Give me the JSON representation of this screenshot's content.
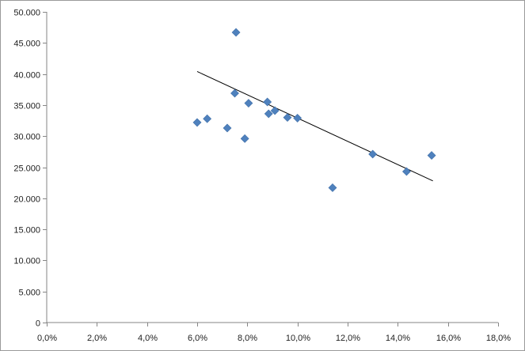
{
  "chart_data": {
    "type": "scatter",
    "title": "",
    "xlabel": "",
    "ylabel": "",
    "xlim": [
      0,
      18
    ],
    "ylim": [
      0,
      50000
    ],
    "x_ticks": [
      0,
      2,
      4,
      6,
      8,
      10,
      12,
      14,
      16,
      18
    ],
    "x_tick_labels": [
      "0,0%",
      "2,0%",
      "4,0%",
      "6,0%",
      "8,0%",
      "10,0%",
      "12,0%",
      "14,0%",
      "16,0%",
      "18,0%"
    ],
    "y_ticks": [
      0,
      5000,
      10000,
      15000,
      20000,
      25000,
      30000,
      35000,
      40000,
      45000,
      50000
    ],
    "y_tick_labels": [
      "0",
      "5.000",
      "10.000",
      "15.000",
      "20.000",
      "25.000",
      "30.000",
      "35.000",
      "40.000",
      "45.000",
      "50.000"
    ],
    "grid": false,
    "legend": "none",
    "marker_color": "#4f81bd",
    "trendline_color": "#000000",
    "series": [
      {
        "x": [
          6.0,
          6.4,
          7.2,
          7.5,
          7.55,
          7.9,
          8.05,
          8.8,
          8.85,
          9.1,
          9.6,
          10.0,
          11.4,
          13.0,
          14.35,
          15.35
        ],
        "y": [
          32200,
          32800,
          31300,
          36900,
          46700,
          29600,
          35300,
          35500,
          33600,
          34100,
          33000,
          32900,
          21700,
          27100,
          24300,
          26900
        ]
      }
    ],
    "trendline": {
      "x": [
        6.0,
        15.4
      ],
      "y": [
        40400,
        22800
      ]
    }
  }
}
